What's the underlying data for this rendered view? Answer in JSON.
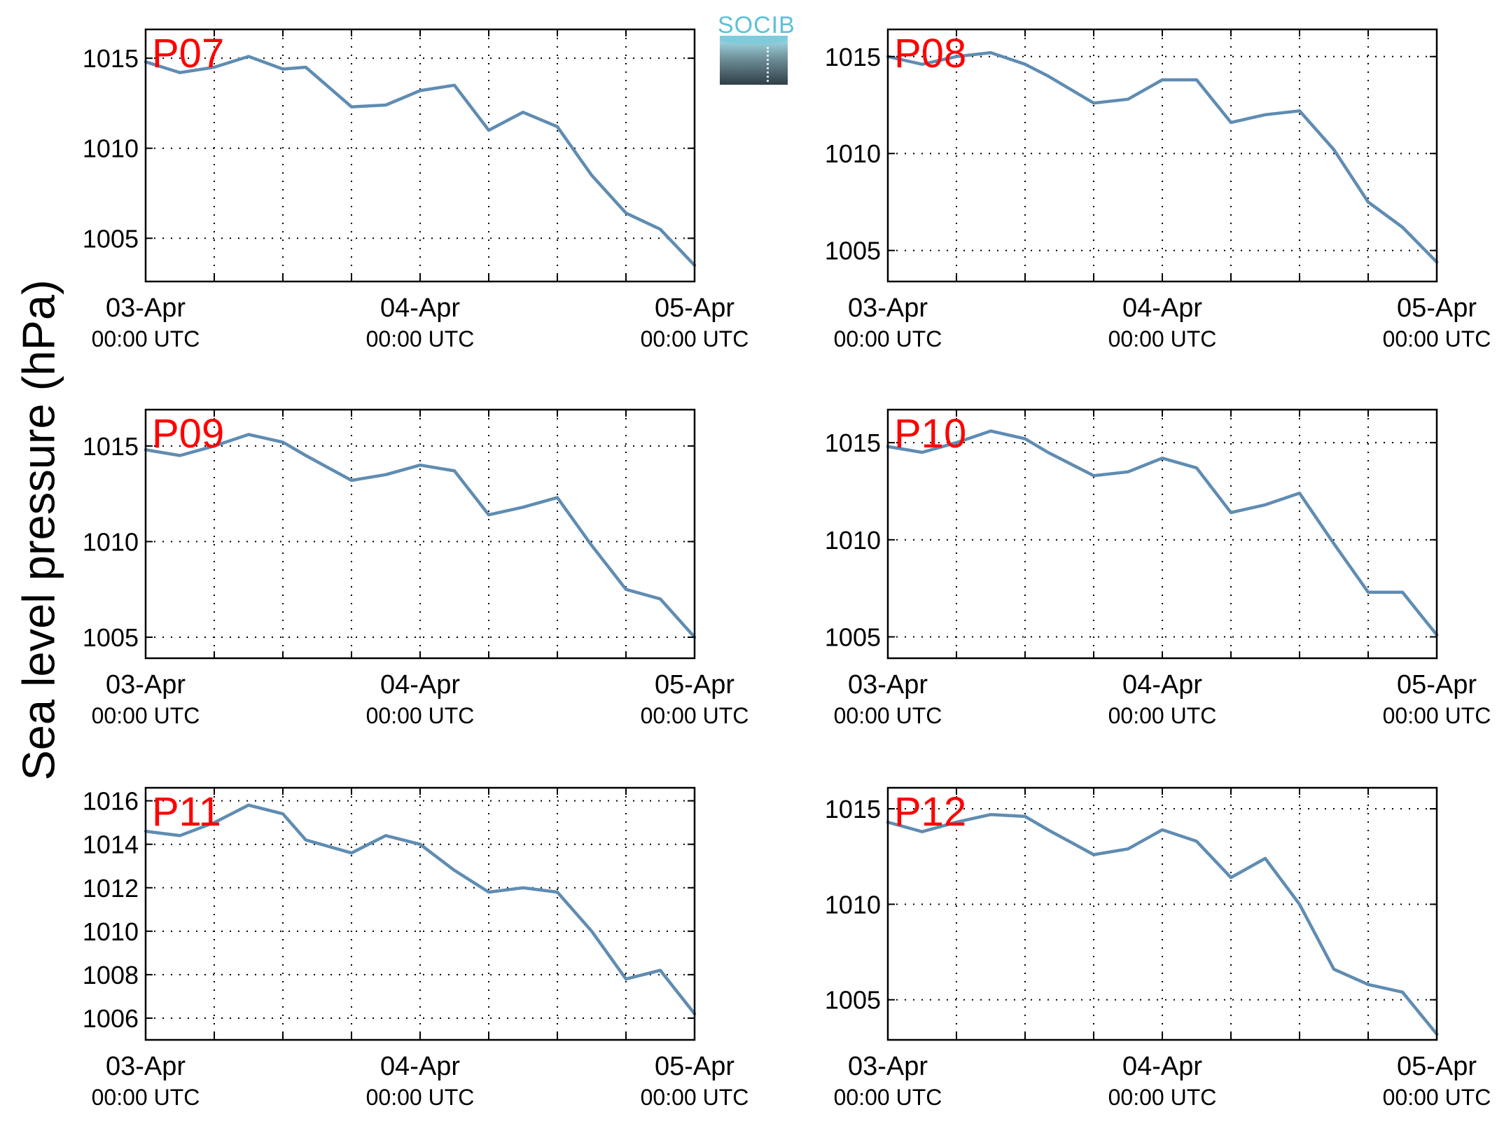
{
  "ylabel": "Sea level pressure (hPa)",
  "logo": {
    "text": "SOCIB"
  },
  "colors": {
    "series": "#5f8cb2",
    "panel_label": "#ff0000",
    "grid": "#000000"
  },
  "chart_data": [
    {
      "type": "line",
      "panel_label": "P07",
      "x_ticks": [
        {
          "date": "03-Apr",
          "time": "00:00 UTC"
        },
        {
          "date": "04-Apr",
          "time": "00:00 UTC"
        },
        {
          "date": "05-Apr",
          "time": "00:00 UTC"
        }
      ],
      "xlim": [
        "03-Apr 00:00",
        "05-Apr 00:00"
      ],
      "ylim": [
        1002.6,
        1016.6
      ],
      "y_ticks": [
        1005,
        1010,
        1015
      ],
      "grid": true,
      "x_hours": [
        0,
        3,
        6,
        9,
        12,
        14,
        18,
        21,
        24,
        27,
        30,
        33,
        36,
        39,
        42,
        45,
        48
      ],
      "values": [
        1014.8,
        1014.2,
        1014.5,
        1015.1,
        1014.4,
        1014.5,
        1012.3,
        1012.4,
        1013.2,
        1013.5,
        1011.0,
        1012.0,
        1011.2,
        1008.5,
        1006.4,
        1005.5,
        1003.5
      ]
    },
    {
      "type": "line",
      "panel_label": "P08",
      "x_ticks": [
        {
          "date": "03-Apr",
          "time": "00:00 UTC"
        },
        {
          "date": "04-Apr",
          "time": "00:00 UTC"
        },
        {
          "date": "05-Apr",
          "time": "00:00 UTC"
        }
      ],
      "xlim": [
        "03-Apr 00:00",
        "05-Apr 00:00"
      ],
      "ylim": [
        1003.4,
        1016.4
      ],
      "y_ticks": [
        1005,
        1010,
        1015
      ],
      "grid": true,
      "x_hours": [
        0,
        3,
        6,
        9,
        12,
        14,
        18,
        21,
        24,
        27,
        30,
        33,
        36,
        39,
        42,
        45,
        48
      ],
      "values": [
        1015.0,
        1014.6,
        1015.0,
        1015.2,
        1014.6,
        1014.0,
        1012.6,
        1012.8,
        1013.8,
        1013.8,
        1011.6,
        1012.0,
        1012.2,
        1010.2,
        1007.5,
        1006.2,
        1004.4
      ]
    },
    {
      "type": "line",
      "panel_label": "P09",
      "x_ticks": [
        {
          "date": "03-Apr",
          "time": "00:00 UTC"
        },
        {
          "date": "04-Apr",
          "time": "00:00 UTC"
        },
        {
          "date": "05-Apr",
          "time": "00:00 UTC"
        }
      ],
      "xlim": [
        "03-Apr 00:00",
        "05-Apr 00:00"
      ],
      "ylim": [
        1003.9,
        1016.9
      ],
      "y_ticks": [
        1005,
        1010,
        1015
      ],
      "grid": true,
      "x_hours": [
        0,
        3,
        6,
        9,
        12,
        14,
        18,
        21,
        24,
        27,
        30,
        33,
        36,
        39,
        42,
        45,
        48
      ],
      "values": [
        1014.8,
        1014.5,
        1015.0,
        1015.6,
        1015.2,
        1014.5,
        1013.2,
        1013.5,
        1014.0,
        1013.7,
        1011.4,
        1011.8,
        1012.3,
        1009.8,
        1007.5,
        1007.0,
        1005.0
      ]
    },
    {
      "type": "line",
      "panel_label": "P10",
      "x_ticks": [
        {
          "date": "03-Apr",
          "time": "00:00 UTC"
        },
        {
          "date": "04-Apr",
          "time": "00:00 UTC"
        },
        {
          "date": "05-Apr",
          "time": "00:00 UTC"
        }
      ],
      "xlim": [
        "03-Apr 00:00",
        "05-Apr 00:00"
      ],
      "ylim": [
        1003.9,
        1016.7
      ],
      "y_ticks": [
        1005,
        1010,
        1015
      ],
      "grid": true,
      "x_hours": [
        0,
        3,
        6,
        9,
        12,
        14,
        18,
        21,
        24,
        27,
        30,
        33,
        36,
        39,
        42,
        45,
        48
      ],
      "values": [
        1014.8,
        1014.5,
        1015.0,
        1015.6,
        1015.2,
        1014.5,
        1013.3,
        1013.5,
        1014.2,
        1013.7,
        1011.4,
        1011.8,
        1012.4,
        1009.8,
        1007.3,
        1007.3,
        1005.1
      ]
    },
    {
      "type": "line",
      "panel_label": "P11",
      "x_ticks": [
        {
          "date": "03-Apr",
          "time": "00:00 UTC"
        },
        {
          "date": "04-Apr",
          "time": "00:00 UTC"
        },
        {
          "date": "05-Apr",
          "time": "00:00 UTC"
        }
      ],
      "xlim": [
        "03-Apr 00:00",
        "05-Apr 00:00"
      ],
      "ylim": [
        1005.0,
        1016.6
      ],
      "y_ticks": [
        1006,
        1008,
        1010,
        1012,
        1014,
        1016
      ],
      "grid": true,
      "x_hours": [
        0,
        3,
        6,
        9,
        12,
        14,
        18,
        21,
        24,
        27,
        30,
        33,
        36,
        39,
        42,
        45,
        48
      ],
      "values": [
        1014.6,
        1014.4,
        1015.0,
        1015.8,
        1015.4,
        1014.2,
        1013.6,
        1014.4,
        1014.0,
        1012.8,
        1011.8,
        1012.0,
        1011.8,
        1010.0,
        1007.8,
        1008.2,
        1006.2
      ]
    },
    {
      "type": "line",
      "panel_label": "P12",
      "x_ticks": [
        {
          "date": "03-Apr",
          "time": "00:00 UTC"
        },
        {
          "date": "04-Apr",
          "time": "00:00 UTC"
        },
        {
          "date": "05-Apr",
          "time": "00:00 UTC"
        }
      ],
      "xlim": [
        "03-Apr 00:00",
        "05-Apr 00:00"
      ],
      "ylim": [
        1002.9,
        1016.1
      ],
      "y_ticks": [
        1005,
        1010,
        1015
      ],
      "grid": true,
      "x_hours": [
        0,
        3,
        6,
        9,
        12,
        14,
        18,
        21,
        24,
        27,
        30,
        33,
        36,
        39,
        42,
        45,
        48
      ],
      "values": [
        1014.3,
        1013.8,
        1014.3,
        1014.7,
        1014.6,
        1013.9,
        1012.6,
        1012.9,
        1013.9,
        1013.3,
        1011.4,
        1012.4,
        1010.0,
        1006.6,
        1005.8,
        1005.4,
        1003.2
      ]
    }
  ]
}
